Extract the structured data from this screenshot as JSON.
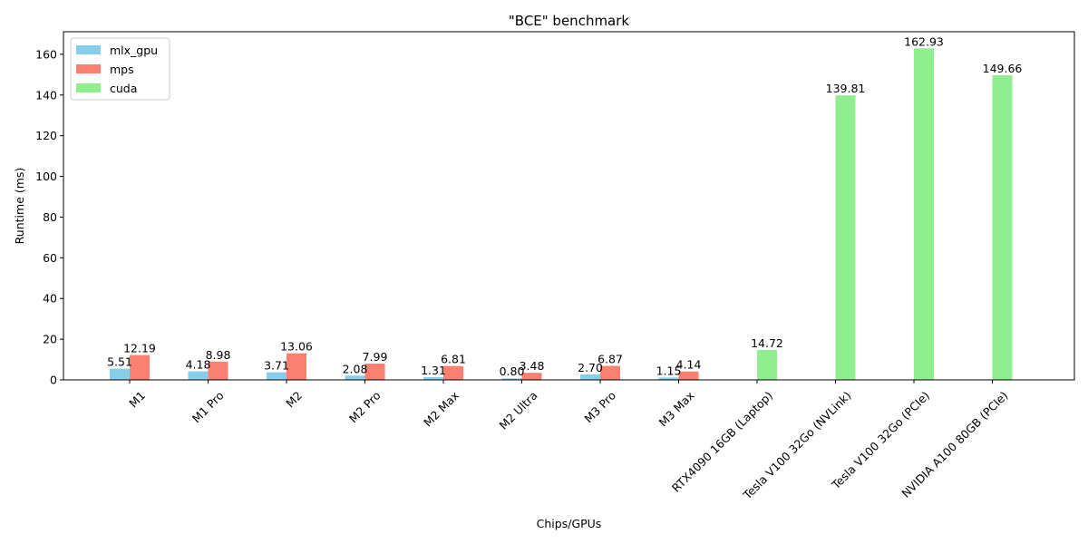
{
  "chart_data": {
    "type": "bar",
    "title": "\"BCE\" benchmark",
    "xlabel": "Chips/GPUs",
    "ylabel": "Runtime (ms)",
    "ylim": [
      0,
      171.08
    ],
    "yticks": [
      0,
      20,
      40,
      60,
      80,
      100,
      120,
      140,
      160
    ],
    "legend_position": "top-left",
    "categories": [
      "M1",
      "M1 Pro",
      "M2",
      "M2 Pro",
      "M2 Max",
      "M2 Ultra",
      "M3 Pro",
      "M3 Max",
      "RTX4090 16GB (Laptop)",
      "Tesla V100 32Go (NVLink)",
      "Tesla V100 32Go (PCIe)",
      "NVIDIA A100 80GB (PCIe)"
    ],
    "series": [
      {
        "name": "mlx_gpu",
        "color": "#87ceeb",
        "values": [
          5.51,
          4.18,
          3.71,
          2.08,
          1.31,
          0.8,
          2.7,
          1.15,
          null,
          null,
          null,
          null
        ],
        "labels": [
          "5.51",
          "4.18",
          "3.71",
          "2.08",
          "1.31",
          "0.80",
          "2.70",
          "1.15",
          null,
          null,
          null,
          null
        ]
      },
      {
        "name": "mps",
        "color": "#fa8072",
        "values": [
          12.19,
          8.98,
          13.06,
          7.99,
          6.81,
          3.48,
          6.87,
          4.14,
          null,
          null,
          null,
          null
        ],
        "labels": [
          "12.19",
          "8.98",
          "13.06",
          "7.99",
          "6.81",
          "3.48",
          "6.87",
          "4.14",
          null,
          null,
          null,
          null
        ]
      },
      {
        "name": "cuda",
        "color": "#90ee90",
        "values": [
          null,
          null,
          null,
          null,
          null,
          null,
          null,
          null,
          14.72,
          139.81,
          162.93,
          149.66
        ],
        "labels": [
          null,
          null,
          null,
          null,
          null,
          null,
          null,
          null,
          "14.72",
          "139.81",
          "162.93",
          "149.66"
        ]
      }
    ]
  }
}
